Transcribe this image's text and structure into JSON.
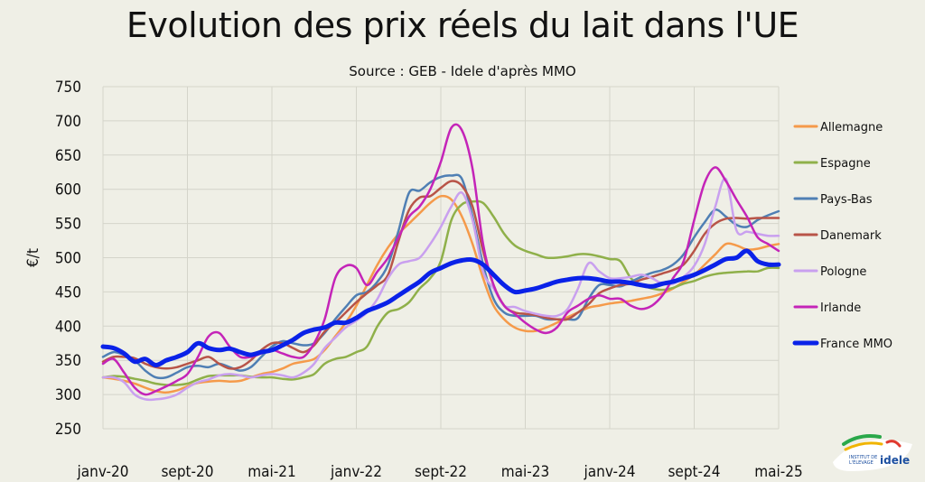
{
  "chart_data": {
    "type": "line",
    "title": "Evolution des prix réels du lait dans l'UE",
    "subtitle": "Source : GEB - Idele d'après MMO",
    "ylabel": "€/t",
    "ylim": [
      250,
      750
    ],
    "yticks": [
      250,
      300,
      350,
      400,
      450,
      500,
      550,
      600,
      650,
      700,
      750
    ],
    "x_tick_labels": [
      "janv-20",
      "sept-20",
      "mai-21",
      "janv-22",
      "sept-22",
      "mai-23",
      "janv-24",
      "sept-24",
      "mai-25"
    ],
    "x_tick_index": [
      0,
      8,
      16,
      24,
      32,
      40,
      48,
      56,
      64
    ],
    "n_points": 65,
    "grid": true,
    "legend_position": "right",
    "series": [
      {
        "name": "Allemagne",
        "color": "#f59a4a",
        "width": 2.5,
        "values": [
          325,
          323,
          320,
          316,
          310,
          305,
          303,
          306,
          312,
          317,
          319,
          320,
          319,
          320,
          325,
          330,
          333,
          338,
          345,
          348,
          352,
          365,
          385,
          405,
          430,
          460,
          490,
          515,
          535,
          550,
          565,
          580,
          590,
          585,
          560,
          520,
          470,
          430,
          410,
          398,
          393,
          393,
          398,
          405,
          413,
          420,
          427,
          430,
          433,
          435,
          437,
          440,
          443,
          448,
          455,
          465,
          475,
          490,
          505,
          520,
          518,
          512,
          513,
          517,
          520
        ]
      },
      {
        "name": "Espagne",
        "color": "#8fb04a",
        "width": 2.5,
        "values": [
          325,
          327,
          326,
          323,
          320,
          316,
          314,
          314,
          316,
          322,
          327,
          328,
          328,
          328,
          326,
          325,
          325,
          323,
          322,
          325,
          330,
          345,
          352,
          355,
          362,
          370,
          400,
          420,
          425,
          435,
          455,
          470,
          495,
          555,
          578,
          582,
          580,
          560,
          535,
          518,
          510,
          505,
          500,
          500,
          502,
          505,
          505,
          502,
          498,
          495,
          470,
          460,
          455,
          453,
          456,
          462,
          466,
          472,
          476,
          478,
          479,
          480,
          480,
          485,
          485
        ]
      },
      {
        "name": "Pays-Bas",
        "color": "#4f7fb4",
        "width": 2.5,
        "values": [
          355,
          362,
          358,
          350,
          335,
          325,
          325,
          332,
          340,
          342,
          340,
          345,
          340,
          335,
          340,
          355,
          370,
          378,
          375,
          372,
          375,
          390,
          410,
          428,
          445,
          450,
          465,
          490,
          540,
          595,
          598,
          610,
          618,
          620,
          615,
          560,
          490,
          440,
          420,
          415,
          415,
          415,
          410,
          410,
          410,
          412,
          440,
          460,
          460,
          458,
          465,
          472,
          478,
          482,
          490,
          505,
          530,
          552,
          570,
          560,
          548,
          545,
          555,
          562,
          568
        ]
      },
      {
        "name": "Danemark",
        "color": "#b85448",
        "width": 2.5,
        "values": [
          348,
          355,
          355,
          353,
          345,
          340,
          338,
          340,
          345,
          350,
          355,
          345,
          338,
          340,
          350,
          365,
          375,
          375,
          368,
          362,
          372,
          392,
          405,
          420,
          435,
          448,
          460,
          475,
          525,
          570,
          588,
          590,
          602,
          612,
          605,
          575,
          510,
          460,
          430,
          420,
          418,
          416,
          412,
          410,
          410,
          420,
          432,
          448,
          455,
          460,
          462,
          468,
          472,
          477,
          482,
          490,
          510,
          535,
          550,
          557,
          558,
          557,
          558,
          558,
          558
        ]
      },
      {
        "name": "Pologne",
        "color": "#c9a0ef",
        "width": 2.5,
        "values": [
          325,
          325,
          318,
          300,
          293,
          293,
          295,
          300,
          310,
          318,
          322,
          328,
          330,
          328,
          325,
          328,
          330,
          328,
          325,
          332,
          345,
          368,
          383,
          398,
          408,
          420,
          440,
          470,
          490,
          495,
          500,
          520,
          545,
          575,
          595,
          555,
          480,
          455,
          430,
          428,
          422,
          418,
          415,
          415,
          425,
          455,
          492,
          480,
          470,
          470,
          472,
          475,
          470,
          462,
          462,
          472,
          488,
          520,
          575,
          615,
          540,
          538,
          535,
          532,
          532
        ]
      },
      {
        "name": "Irlande",
        "color": "#c424b8",
        "width": 2.5,
        "values": [
          345,
          352,
          332,
          310,
          300,
          305,
          312,
          320,
          330,
          355,
          385,
          390,
          370,
          355,
          355,
          360,
          365,
          360,
          355,
          355,
          375,
          410,
          470,
          488,
          485,
          460,
          480,
          500,
          530,
          560,
          575,
          600,
          640,
          690,
          686,
          630,
          520,
          460,
          430,
          418,
          405,
          395,
          390,
          398,
          420,
          430,
          440,
          445,
          440,
          440,
          430,
          425,
          430,
          445,
          470,
          495,
          555,
          610,
          632,
          612,
          585,
          560,
          530,
          520,
          510
        ]
      },
      {
        "name": "France MMO",
        "color": "#0a22e8",
        "width": 5,
        "values": [
          370,
          368,
          360,
          348,
          352,
          343,
          350,
          355,
          362,
          375,
          368,
          365,
          367,
          362,
          358,
          362,
          365,
          372,
          380,
          390,
          395,
          398,
          405,
          405,
          412,
          422,
          428,
          435,
          445,
          455,
          465,
          478,
          485,
          492,
          496,
          497,
          490,
          475,
          460,
          450,
          452,
          455,
          460,
          465,
          468,
          470,
          470,
          468,
          465,
          465,
          463,
          460,
          458,
          462,
          465,
          470,
          475,
          482,
          490,
          498,
          500,
          510,
          495,
          490,
          490
        ]
      }
    ]
  },
  "logo": {
    "line1": "INSTITUT DE",
    "line2": "L'ÉLEVAGE",
    "brand": "idele",
    "colors": [
      "#2aa84a",
      "#f0b400",
      "#e03a2f",
      "#1c4fa0"
    ]
  }
}
